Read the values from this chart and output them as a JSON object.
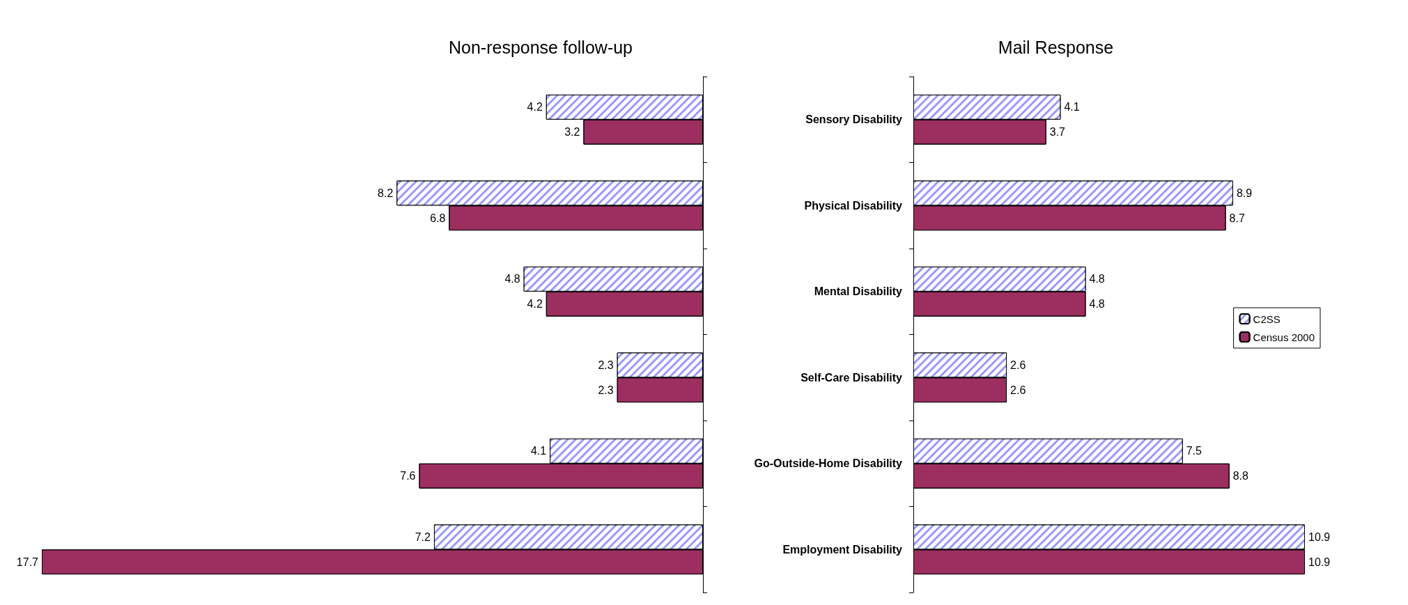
{
  "chart_data": [
    {
      "type": "bar",
      "orientation": "horizontal",
      "title": "Non-response follow-up",
      "categories": [
        "Sensory Disability",
        "Physical Disability",
        "Mental Disability",
        "Self-Care Disability",
        "Go-Outside-Home Disability",
        "Employment Disability"
      ],
      "tick_labels": "y",
      "data_labels": true,
      "legend": false,
      "grid": false,
      "series": [
        {
          "color": "#9999ff",
          "values": [
            4.2,
            8.2,
            4.8,
            2.3,
            4.1,
            7.2
          ]
        },
        {
          "color": "#9c2f5f",
          "values": [
            3.2,
            6.8,
            4.2,
            2.3,
            7.6,
            17.7
          ]
        }
      ]
    },
    {
      "type": "bar",
      "orientation": "horizontal",
      "title": "Mail Response",
      "categories": [
        null,
        null,
        null,
        null,
        null,
        null
      ],
      "tick_labels": false,
      "data_labels": true,
      "legend": "right",
      "grid": false,
      "series": [
        {
          "name": "C2SS",
          "color": "#9999ff",
          "values": [
            4.1,
            8.9,
            4.8,
            2.6,
            7.5,
            10.9
          ]
        },
        {
          "name": "Census 2000",
          "color": "#9c2f5f",
          "values": [
            3.7,
            8.7,
            4.8,
            2.6,
            8.8,
            10.9
          ]
        }
      ]
    }
  ]
}
